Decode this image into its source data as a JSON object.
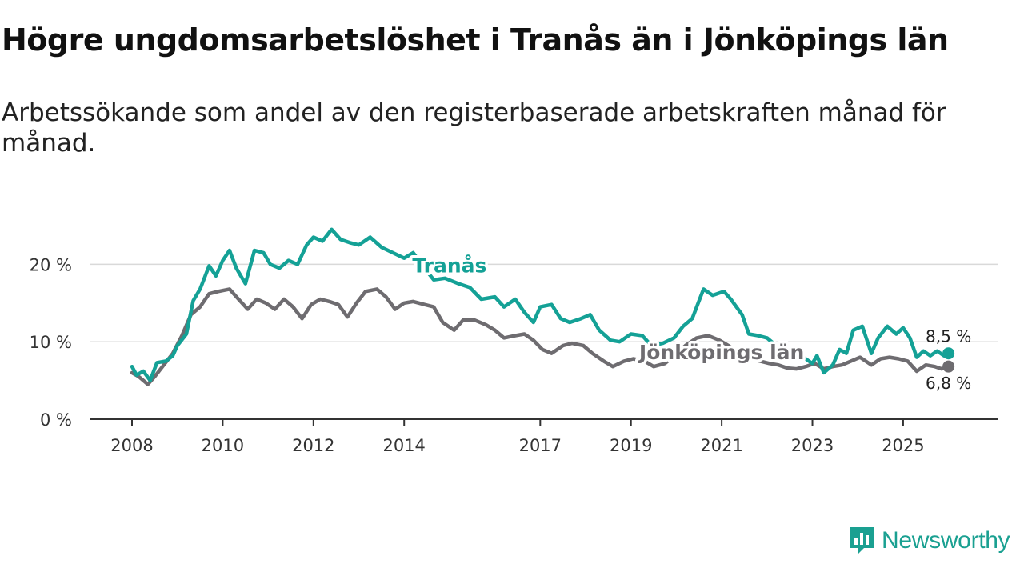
{
  "title": "Högre ungdomsarbetslöshet i Tranås än i Jönköpings län",
  "subtitle": "Arbetssökande som andel av den registerbaserade arbetskraften månad för månad.",
  "brand": "Newsworthy",
  "colors": {
    "tranas": "#14a196",
    "jonkoping": "#6e6c70",
    "grid": "#d9d9d9",
    "axis": "#333333"
  },
  "chart_data": {
    "type": "line",
    "title": "Högre ungdomsarbetslöshet i Tranås än i Jönköpings län",
    "xlabel": "",
    "ylabel": "",
    "xlim": [
      2008.0,
      2027.1
    ],
    "ylim": [
      0,
      25
    ],
    "y_ticks": [
      {
        "value": 0,
        "label": "0 %"
      },
      {
        "value": 10,
        "label": "10 %"
      },
      {
        "value": 20,
        "label": "20 %"
      }
    ],
    "x_ticks": [
      {
        "value": 2008,
        "label": "2008"
      },
      {
        "value": 2010,
        "label": "2010"
      },
      {
        "value": 2012,
        "label": "2012"
      },
      {
        "value": 2014,
        "label": "2014"
      },
      {
        "value": 2017,
        "label": "2017"
      },
      {
        "value": 2019,
        "label": "2019"
      },
      {
        "value": 2021,
        "label": "2021"
      },
      {
        "value": 2023,
        "label": "2023"
      },
      {
        "value": 2025,
        "label": "2025"
      }
    ],
    "series": [
      {
        "name": "Tranås",
        "color_key": "tranas",
        "end_label": "8,5 %",
        "points": [
          [
            2008.0,
            6.8
          ],
          [
            2008.1,
            5.7
          ],
          [
            2008.25,
            6.2
          ],
          [
            2008.4,
            5.0
          ],
          [
            2008.55,
            7.3
          ],
          [
            2008.75,
            7.5
          ],
          [
            2008.9,
            8.2
          ],
          [
            2009.0,
            9.5
          ],
          [
            2009.2,
            11.0
          ],
          [
            2009.35,
            15.3
          ],
          [
            2009.5,
            16.8
          ],
          [
            2009.7,
            19.8
          ],
          [
            2009.85,
            18.5
          ],
          [
            2010.0,
            20.5
          ],
          [
            2010.15,
            21.8
          ],
          [
            2010.3,
            19.5
          ],
          [
            2010.5,
            17.5
          ],
          [
            2010.7,
            21.8
          ],
          [
            2010.9,
            21.5
          ],
          [
            2011.05,
            20.0
          ],
          [
            2011.25,
            19.5
          ],
          [
            2011.45,
            20.5
          ],
          [
            2011.65,
            20.0
          ],
          [
            2011.85,
            22.5
          ],
          [
            2012.0,
            23.5
          ],
          [
            2012.2,
            23.0
          ],
          [
            2012.4,
            24.5
          ],
          [
            2012.6,
            23.2
          ],
          [
            2012.8,
            22.8
          ],
          [
            2013.0,
            22.5
          ],
          [
            2013.25,
            23.5
          ],
          [
            2013.5,
            22.2
          ],
          [
            2013.75,
            21.5
          ],
          [
            2014.0,
            20.8
          ],
          [
            2014.2,
            21.5
          ],
          [
            2014.45,
            19.5
          ],
          [
            2014.65,
            18.0
          ],
          [
            2014.9,
            18.2
          ],
          [
            2015.2,
            17.5
          ],
          [
            2015.45,
            17.0
          ],
          [
            2015.7,
            15.5
          ],
          [
            2016.0,
            15.8
          ],
          [
            2016.2,
            14.5
          ],
          [
            2016.45,
            15.5
          ],
          [
            2016.65,
            13.8
          ],
          [
            2016.85,
            12.5
          ],
          [
            2017.0,
            14.5
          ],
          [
            2017.25,
            14.8
          ],
          [
            2017.45,
            13.0
          ],
          [
            2017.65,
            12.5
          ],
          [
            2017.9,
            13.0
          ],
          [
            2018.1,
            13.5
          ],
          [
            2018.3,
            11.5
          ],
          [
            2018.55,
            10.2
          ],
          [
            2018.75,
            10.0
          ],
          [
            2019.0,
            11.0
          ],
          [
            2019.25,
            10.8
          ],
          [
            2019.45,
            9.5
          ],
          [
            2019.7,
            9.8
          ],
          [
            2019.95,
            10.5
          ],
          [
            2020.15,
            12.0
          ],
          [
            2020.35,
            13.0
          ],
          [
            2020.6,
            16.8
          ],
          [
            2020.8,
            16.0
          ],
          [
            2021.05,
            16.5
          ],
          [
            2021.2,
            15.5
          ],
          [
            2021.45,
            13.5
          ],
          [
            2021.6,
            11.0
          ],
          [
            2021.8,
            10.8
          ],
          [
            2022.0,
            10.5
          ],
          [
            2022.2,
            9.5
          ],
          [
            2022.4,
            9.0
          ],
          [
            2022.6,
            8.5
          ],
          [
            2022.8,
            8.0
          ],
          [
            2023.0,
            7.2
          ],
          [
            2023.1,
            8.2
          ],
          [
            2023.25,
            6.0
          ],
          [
            2023.45,
            7.0
          ],
          [
            2023.6,
            9.0
          ],
          [
            2023.75,
            8.5
          ],
          [
            2023.9,
            11.5
          ],
          [
            2024.1,
            12.0
          ],
          [
            2024.3,
            8.5
          ],
          [
            2024.45,
            10.5
          ],
          [
            2024.65,
            12.0
          ],
          [
            2024.85,
            11.0
          ],
          [
            2025.0,
            11.8
          ],
          [
            2025.15,
            10.5
          ],
          [
            2025.3,
            8.0
          ],
          [
            2025.45,
            8.8
          ],
          [
            2025.6,
            8.2
          ],
          [
            2025.75,
            8.8
          ],
          [
            2025.9,
            8.2
          ],
          [
            2026.0,
            8.5
          ]
        ]
      },
      {
        "name": "Jönköpings län",
        "color_key": "jonkoping",
        "end_label": "6,8 %",
        "points": [
          [
            2008.0,
            6.0
          ],
          [
            2008.15,
            5.5
          ],
          [
            2008.35,
            4.5
          ],
          [
            2008.5,
            5.5
          ],
          [
            2008.7,
            7.0
          ],
          [
            2008.9,
            8.5
          ],
          [
            2009.1,
            10.8
          ],
          [
            2009.3,
            13.5
          ],
          [
            2009.5,
            14.5
          ],
          [
            2009.7,
            16.2
          ],
          [
            2009.9,
            16.5
          ],
          [
            2010.15,
            16.8
          ],
          [
            2010.35,
            15.5
          ],
          [
            2010.55,
            14.2
          ],
          [
            2010.75,
            15.5
          ],
          [
            2010.95,
            15.0
          ],
          [
            2011.15,
            14.2
          ],
          [
            2011.35,
            15.5
          ],
          [
            2011.55,
            14.5
          ],
          [
            2011.75,
            13.0
          ],
          [
            2011.95,
            14.8
          ],
          [
            2012.15,
            15.5
          ],
          [
            2012.35,
            15.2
          ],
          [
            2012.55,
            14.8
          ],
          [
            2012.75,
            13.2
          ],
          [
            2012.95,
            15.0
          ],
          [
            2013.15,
            16.5
          ],
          [
            2013.4,
            16.8
          ],
          [
            2013.6,
            15.8
          ],
          [
            2013.8,
            14.2
          ],
          [
            2014.0,
            15.0
          ],
          [
            2014.2,
            15.2
          ],
          [
            2014.45,
            14.8
          ],
          [
            2014.65,
            14.5
          ],
          [
            2014.85,
            12.5
          ],
          [
            2015.1,
            11.5
          ],
          [
            2015.3,
            12.8
          ],
          [
            2015.55,
            12.8
          ],
          [
            2015.8,
            12.2
          ],
          [
            2016.0,
            11.5
          ],
          [
            2016.2,
            10.5
          ],
          [
            2016.45,
            10.8
          ],
          [
            2016.65,
            11.0
          ],
          [
            2016.85,
            10.2
          ],
          [
            2017.05,
            9.0
          ],
          [
            2017.25,
            8.5
          ],
          [
            2017.5,
            9.5
          ],
          [
            2017.7,
            9.8
          ],
          [
            2017.95,
            9.5
          ],
          [
            2018.15,
            8.5
          ],
          [
            2018.4,
            7.5
          ],
          [
            2018.6,
            6.8
          ],
          [
            2018.85,
            7.5
          ],
          [
            2019.05,
            7.8
          ],
          [
            2019.3,
            7.5
          ],
          [
            2019.5,
            6.8
          ],
          [
            2019.75,
            7.2
          ],
          [
            2019.95,
            8.2
          ],
          [
            2020.2,
            9.5
          ],
          [
            2020.45,
            10.5
          ],
          [
            2020.7,
            10.8
          ],
          [
            2020.95,
            10.2
          ],
          [
            2021.15,
            9.5
          ],
          [
            2021.4,
            8.5
          ],
          [
            2021.6,
            7.8
          ],
          [
            2021.85,
            7.5
          ],
          [
            2022.05,
            7.2
          ],
          [
            2022.25,
            7.0
          ],
          [
            2022.45,
            6.6
          ],
          [
            2022.65,
            6.5
          ],
          [
            2022.85,
            6.8
          ],
          [
            2023.05,
            7.2
          ],
          [
            2023.25,
            6.5
          ],
          [
            2023.45,
            6.8
          ],
          [
            2023.65,
            7.0
          ],
          [
            2023.85,
            7.5
          ],
          [
            2024.05,
            8.0
          ],
          [
            2024.3,
            7.0
          ],
          [
            2024.5,
            7.8
          ],
          [
            2024.7,
            8.0
          ],
          [
            2024.9,
            7.8
          ],
          [
            2025.1,
            7.5
          ],
          [
            2025.3,
            6.2
          ],
          [
            2025.5,
            7.0
          ],
          [
            2025.7,
            6.8
          ],
          [
            2025.85,
            6.5
          ],
          [
            2026.0,
            6.8
          ]
        ]
      }
    ]
  }
}
